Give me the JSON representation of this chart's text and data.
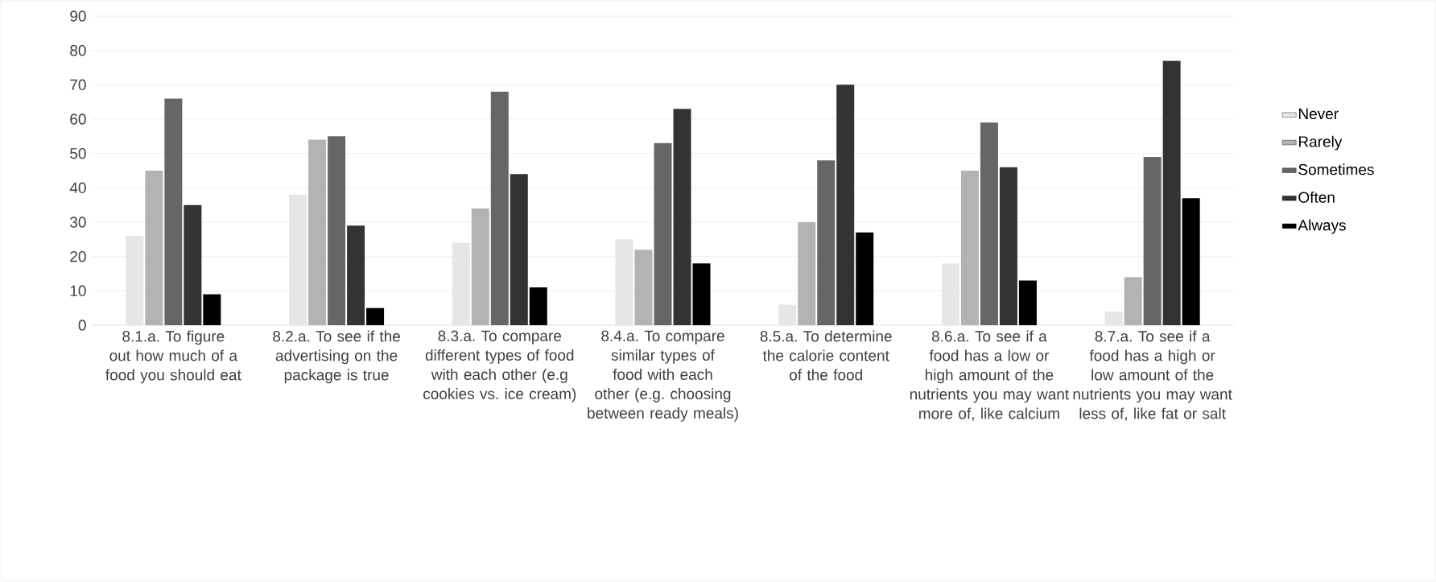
{
  "chart_data": {
    "type": "bar",
    "categories": [
      "8.1.a. To figure out how much of a food you should eat",
      "8.2.a. To see if the advertising on the package is true",
      "8.3.a. To compare different types of food with each other (e.g cookies vs. ice cream)",
      "8.4.a. To compare similar types of food with each other (e.g. choosing between ready meals)",
      "8.5.a. To determine the calorie content of the food",
      "8.6.a. To see if a food has a low or high amount of the nutrients you may want more of, like calcium",
      "8.7.a. To see if a food has a high or low amount of the nutrients you may want less of, like fat or salt"
    ],
    "series": [
      {
        "name": "Never",
        "color": "#e6e6e6",
        "values": [
          26,
          38,
          24,
          25,
          6,
          18,
          4
        ]
      },
      {
        "name": "Rarely",
        "color": "#b3b3b3",
        "values": [
          45,
          54,
          34,
          22,
          30,
          45,
          14
        ]
      },
      {
        "name": "Sometimes",
        "color": "#666666",
        "values": [
          66,
          55,
          68,
          53,
          48,
          59,
          49
        ]
      },
      {
        "name": "Often",
        "color": "#333333",
        "values": [
          35,
          29,
          44,
          63,
          70,
          46,
          77
        ]
      },
      {
        "name": "Always",
        "color": "#000000",
        "values": [
          9,
          5,
          11,
          18,
          27,
          13,
          37
        ]
      }
    ],
    "ylim": [
      0,
      90
    ],
    "yticks": [
      0,
      10,
      20,
      30,
      40,
      50,
      60,
      70,
      80,
      90
    ],
    "grid": "y",
    "legend": "right"
  }
}
